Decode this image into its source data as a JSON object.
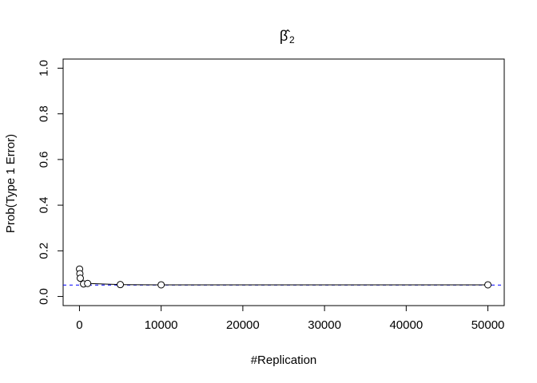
{
  "chart_data": {
    "type": "scatter",
    "title": "β̂",
    "title_subscript": "2",
    "xlabel": "#Replication",
    "ylabel": "Prob(Type 1 Error)",
    "xlim": [
      -2000,
      52000
    ],
    "ylim": [
      -0.04,
      1.04
    ],
    "x_ticks": [
      0,
      10000,
      20000,
      30000,
      40000,
      50000
    ],
    "x_tick_labels": [
      "0",
      "10000",
      "20000",
      "30000",
      "40000",
      "50000"
    ],
    "y_ticks": [
      0.0,
      0.2,
      0.4,
      0.6,
      0.8,
      1.0
    ],
    "y_tick_labels": [
      "0.0",
      "0.2",
      "0.4",
      "0.6",
      "0.8",
      "1.0"
    ],
    "grid": false,
    "x": [
      10,
      50,
      100,
      500,
      1000,
      5000,
      10000,
      50000
    ],
    "y": [
      0.12,
      0.1,
      0.08,
      0.055,
      0.057,
      0.052,
      0.051,
      0.051
    ],
    "reference_line": {
      "y": 0.05,
      "color": "#0000ff",
      "style": "dashed"
    },
    "line_color": "#000000",
    "marker": "open-circle"
  }
}
